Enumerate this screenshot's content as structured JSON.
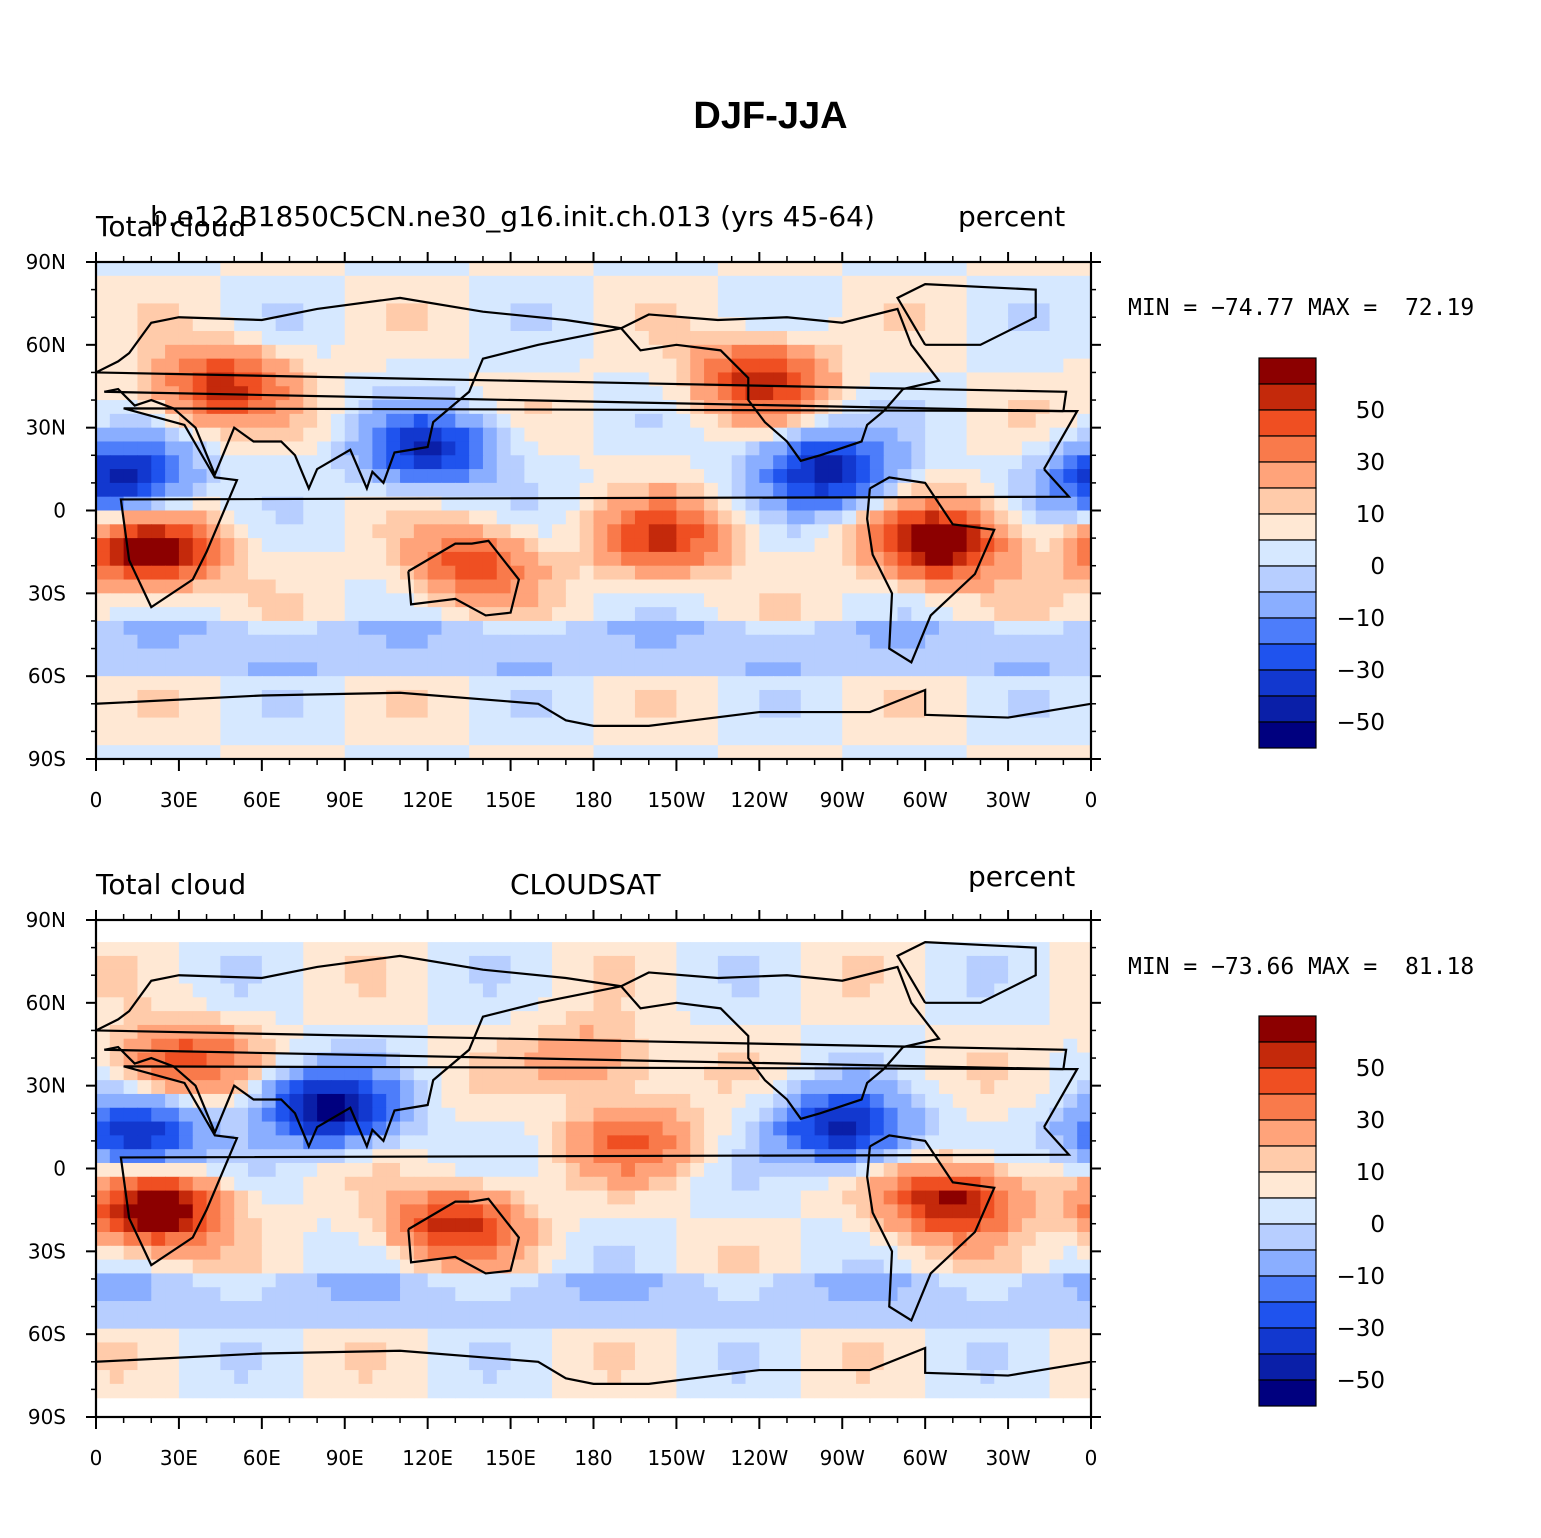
{
  "figure": {
    "title": "DJF-JJA"
  },
  "axes": {
    "lat_ticks": [
      "90N",
      "60N",
      "30N",
      "0",
      "30S",
      "60S",
      "90S"
    ],
    "lon_ticks": [
      "0",
      "30E",
      "60E",
      "90E",
      "120E",
      "150E",
      "180",
      "150W",
      "120W",
      "90W",
      "60W",
      "30W",
      "0"
    ]
  },
  "colorbar": {
    "labels": [
      "50",
      "30",
      "10",
      "0",
      "−10",
      "−30",
      "−50"
    ],
    "levels": [
      -60,
      -50,
      -40,
      -30,
      -20,
      -10,
      -5,
      0,
      5,
      10,
      20,
      30,
      40,
      50,
      60
    ],
    "colors": [
      "#00007f",
      "#0a1fa8",
      "#1238cf",
      "#1f53ee",
      "#4d7dfa",
      "#8aaeff",
      "#b7ceff",
      "#d6e8ff",
      "#ffe8d4",
      "#ffcbaa",
      "#ffa37a",
      "#f97a4b",
      "#ef4f22",
      "#c4290b",
      "#8c0000"
    ]
  },
  "panels": [
    {
      "left_label": "Total cloud",
      "center_label": "b.e12.B1850C5CN.ne30_g16.init.ch.013 (yrs 45-64)",
      "right_label": "percent",
      "stats": "MIN = −74.77 MAX =  72.19",
      "min": -74.77,
      "max": 72.19
    },
    {
      "left_label": "Total cloud",
      "center_label": "CLOUDSAT",
      "right_label": "percent",
      "stats": "MIN = −73.66 MAX =  81.18",
      "min": -73.66,
      "max": 81.18
    }
  ],
  "chart_data": [
    {
      "type": "heatmap",
      "title": "DJF-JJA",
      "xlabel": "",
      "ylabel": "",
      "x_ticks": [
        "0",
        "30E",
        "60E",
        "90E",
        "120E",
        "150E",
        "180",
        "150W",
        "120W",
        "90W",
        "60W",
        "30W",
        "0"
      ],
      "y_ticks": [
        "90N",
        "60N",
        "30N",
        "0",
        "30S",
        "60S",
        "90S"
      ],
      "xlim": [
        0,
        360
      ],
      "ylim": [
        -90,
        90
      ],
      "levels": [
        -60,
        -50,
        -40,
        -30,
        -20,
        -10,
        -5,
        0,
        5,
        10,
        20,
        30,
        40,
        50,
        60
      ],
      "min": -74.77,
      "max": 72.19,
      "features": [
        {
          "lon": 20,
          "lat": -15,
          "value": 60
        },
        {
          "lon": 305,
          "lat": -12,
          "value": 65
        },
        {
          "lon": 45,
          "lat": 45,
          "value": 45
        },
        {
          "lon": 120,
          "lat": 22,
          "value": -50
        },
        {
          "lon": 10,
          "lat": 12,
          "value": -55
        },
        {
          "lon": 265,
          "lat": 15,
          "value": -55
        },
        {
          "lon": 205,
          "lat": -10,
          "value": 40
        },
        {
          "lon": 135,
          "lat": -20,
          "value": 35
        },
        {
          "lon": 240,
          "lat": 48,
          "value": 45
        }
      ]
    },
    {
      "type": "heatmap",
      "title": "CLOUDSAT",
      "xlabel": "",
      "ylabel": "",
      "x_ticks": [
        "0",
        "30E",
        "60E",
        "90E",
        "120E",
        "150E",
        "180",
        "150W",
        "120W",
        "90W",
        "60W",
        "30W",
        "0"
      ],
      "y_ticks": [
        "90N",
        "60N",
        "30N",
        "0",
        "30S",
        "60S",
        "90S"
      ],
      "xlim": [
        0,
        360
      ],
      "ylim": [
        -90,
        90
      ],
      "levels": [
        -60,
        -50,
        -40,
        -30,
        -20,
        -10,
        -5,
        0,
        5,
        10,
        20,
        30,
        40,
        50,
        60
      ],
      "min": -73.66,
      "max": 81.18,
      "features": [
        {
          "lon": 22,
          "lat": -15,
          "value": 65
        },
        {
          "lon": 310,
          "lat": -12,
          "value": 55
        },
        {
          "lon": 30,
          "lat": 40,
          "value": 35
        },
        {
          "lon": 85,
          "lat": 22,
          "value": -65
        },
        {
          "lon": 15,
          "lat": 12,
          "value": -50
        },
        {
          "lon": 270,
          "lat": 15,
          "value": -55
        },
        {
          "lon": 130,
          "lat": -20,
          "value": 45
        },
        {
          "lon": 195,
          "lat": 10,
          "value": 30
        },
        {
          "lon": 180,
          "lat": 40,
          "value": 20
        }
      ]
    }
  ]
}
